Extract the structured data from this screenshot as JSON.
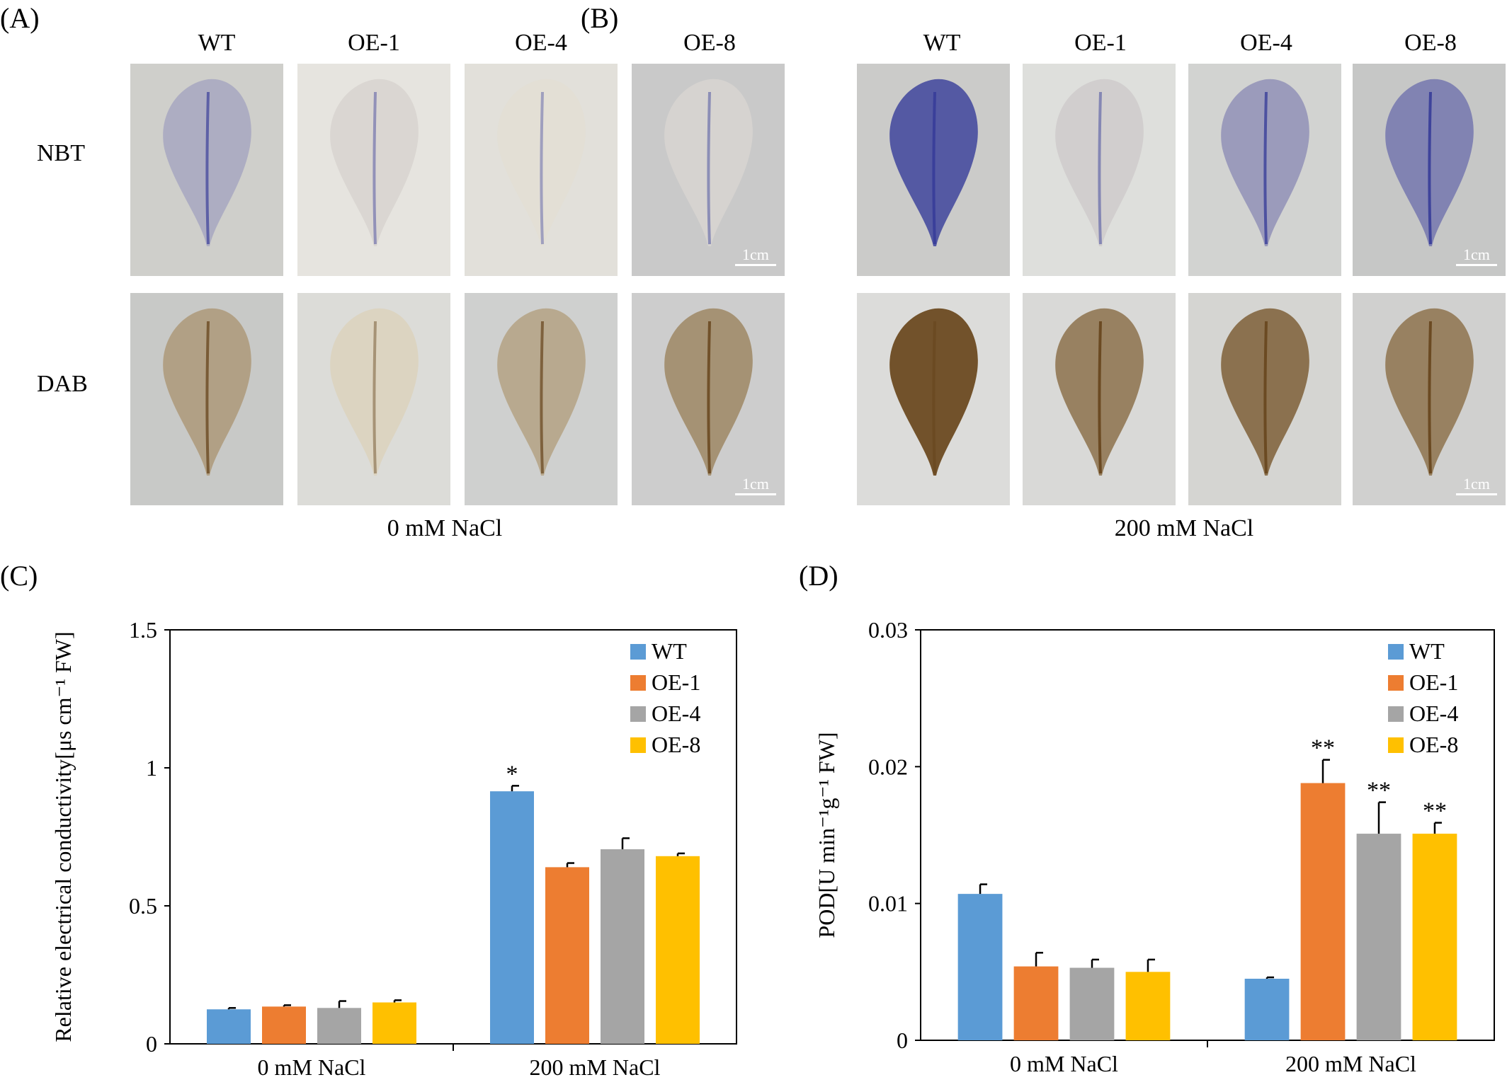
{
  "panels": {
    "a_label": "(A)",
    "b_label": "(B)",
    "c_label": "(C)",
    "d_label": "(D)"
  },
  "genotypes": [
    "WT",
    "OE-1",
    "OE-4",
    "OE-8"
  ],
  "stains": {
    "nbt": "NBT",
    "dab": "DAB"
  },
  "conditions": {
    "control": "0 mM NaCl",
    "salt": "200 mM NaCl"
  },
  "scale_bar": "1cm",
  "colors": {
    "WT": "#5b9bd5",
    "OE-1": "#ed7d31",
    "OE-4": "#a5a5a5",
    "OE-8": "#ffc000",
    "nbt_stain": "#3a3f9a",
    "dab_stain": "#6b4a22"
  },
  "chart_data": [
    {
      "type": "bar",
      "panel": "(C)",
      "ylabel": "Relative electrical conductivity[μs cm⁻¹ FW]",
      "ylim": [
        0,
        1.5
      ],
      "yticks": [
        0,
        0.5,
        1,
        1.5
      ],
      "ytick_labels": [
        "0",
        "0.5",
        "1",
        "1.5"
      ],
      "categories": [
        "0 mM NaCl",
        "200 mM NaCl"
      ],
      "legend_position": "top-right",
      "series": [
        {
          "name": "WT",
          "values": [
            0.125,
            0.915
          ],
          "errors": [
            0.005,
            0.02
          ],
          "sig": [
            "",
            "*"
          ]
        },
        {
          "name": "OE-1",
          "values": [
            0.135,
            0.64
          ],
          "errors": [
            0.005,
            0.015
          ],
          "sig": [
            "",
            ""
          ]
        },
        {
          "name": "OE-4",
          "values": [
            0.13,
            0.705
          ],
          "errors": [
            0.025,
            0.04
          ],
          "sig": [
            "",
            ""
          ]
        },
        {
          "name": "OE-8",
          "values": [
            0.15,
            0.68
          ],
          "errors": [
            0.008,
            0.01
          ],
          "sig": [
            "",
            ""
          ]
        }
      ]
    },
    {
      "type": "bar",
      "panel": "(D)",
      "ylabel": "POD[U min⁻¹g⁻¹ FW]",
      "ylim": [
        0,
        0.03
      ],
      "yticks": [
        0,
        0.01,
        0.02,
        0.03
      ],
      "ytick_labels": [
        "0",
        "0.01",
        "0.02",
        "0.03"
      ],
      "categories": [
        "0 mM NaCl",
        "200 mM NaCl"
      ],
      "legend_position": "top-right",
      "series": [
        {
          "name": "WT",
          "values": [
            0.0107,
            0.0045
          ],
          "errors": [
            0.0007,
            0.0001
          ],
          "sig": [
            "",
            ""
          ]
        },
        {
          "name": "OE-1",
          "values": [
            0.0054,
            0.0188
          ],
          "errors": [
            0.001,
            0.0017
          ],
          "sig": [
            "",
            "**"
          ]
        },
        {
          "name": "OE-4",
          "values": [
            0.0053,
            0.0151
          ],
          "errors": [
            0.0006,
            0.0023
          ],
          "sig": [
            "",
            "**"
          ]
        },
        {
          "name": "OE-8",
          "values": [
            0.005,
            0.0151
          ],
          "errors": [
            0.0009,
            0.0008
          ],
          "sig": [
            "",
            "**"
          ]
        }
      ]
    }
  ]
}
